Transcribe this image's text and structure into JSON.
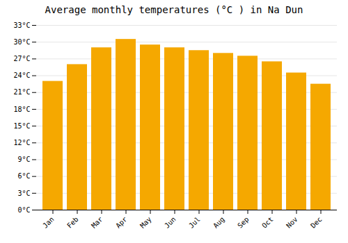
{
  "chart_data": {
    "type": "bar",
    "title": "Average monthly temperatures (°C ) in Na Dun",
    "categories": [
      "Jan",
      "Feb",
      "Mar",
      "Apr",
      "May",
      "Jun",
      "Jul",
      "Aug",
      "Sep",
      "Oct",
      "Nov",
      "Dec"
    ],
    "values": [
      23.0,
      26.0,
      29.0,
      30.5,
      29.5,
      29.0,
      28.5,
      28.0,
      27.5,
      26.5,
      24.5,
      22.5
    ],
    "color": "#F5A800",
    "ylim": [
      0,
      33
    ],
    "yticks": [
      {
        "value": 0,
        "label": "0°C"
      },
      {
        "value": 3,
        "label": "3°C"
      },
      {
        "value": 6,
        "label": "6°C"
      },
      {
        "value": 9,
        "label": "9°C"
      },
      {
        "value": 12,
        "label": "12°C"
      },
      {
        "value": 15,
        "label": "15°C"
      },
      {
        "value": 18,
        "label": "18°C"
      },
      {
        "value": 21,
        "label": "21°C"
      },
      {
        "value": 24,
        "label": "24°C"
      },
      {
        "value": 27,
        "label": "27°C"
      },
      {
        "value": 30,
        "label": "30°C"
      },
      {
        "value": 33,
        "label": "33°C"
      }
    ],
    "grid": true
  }
}
